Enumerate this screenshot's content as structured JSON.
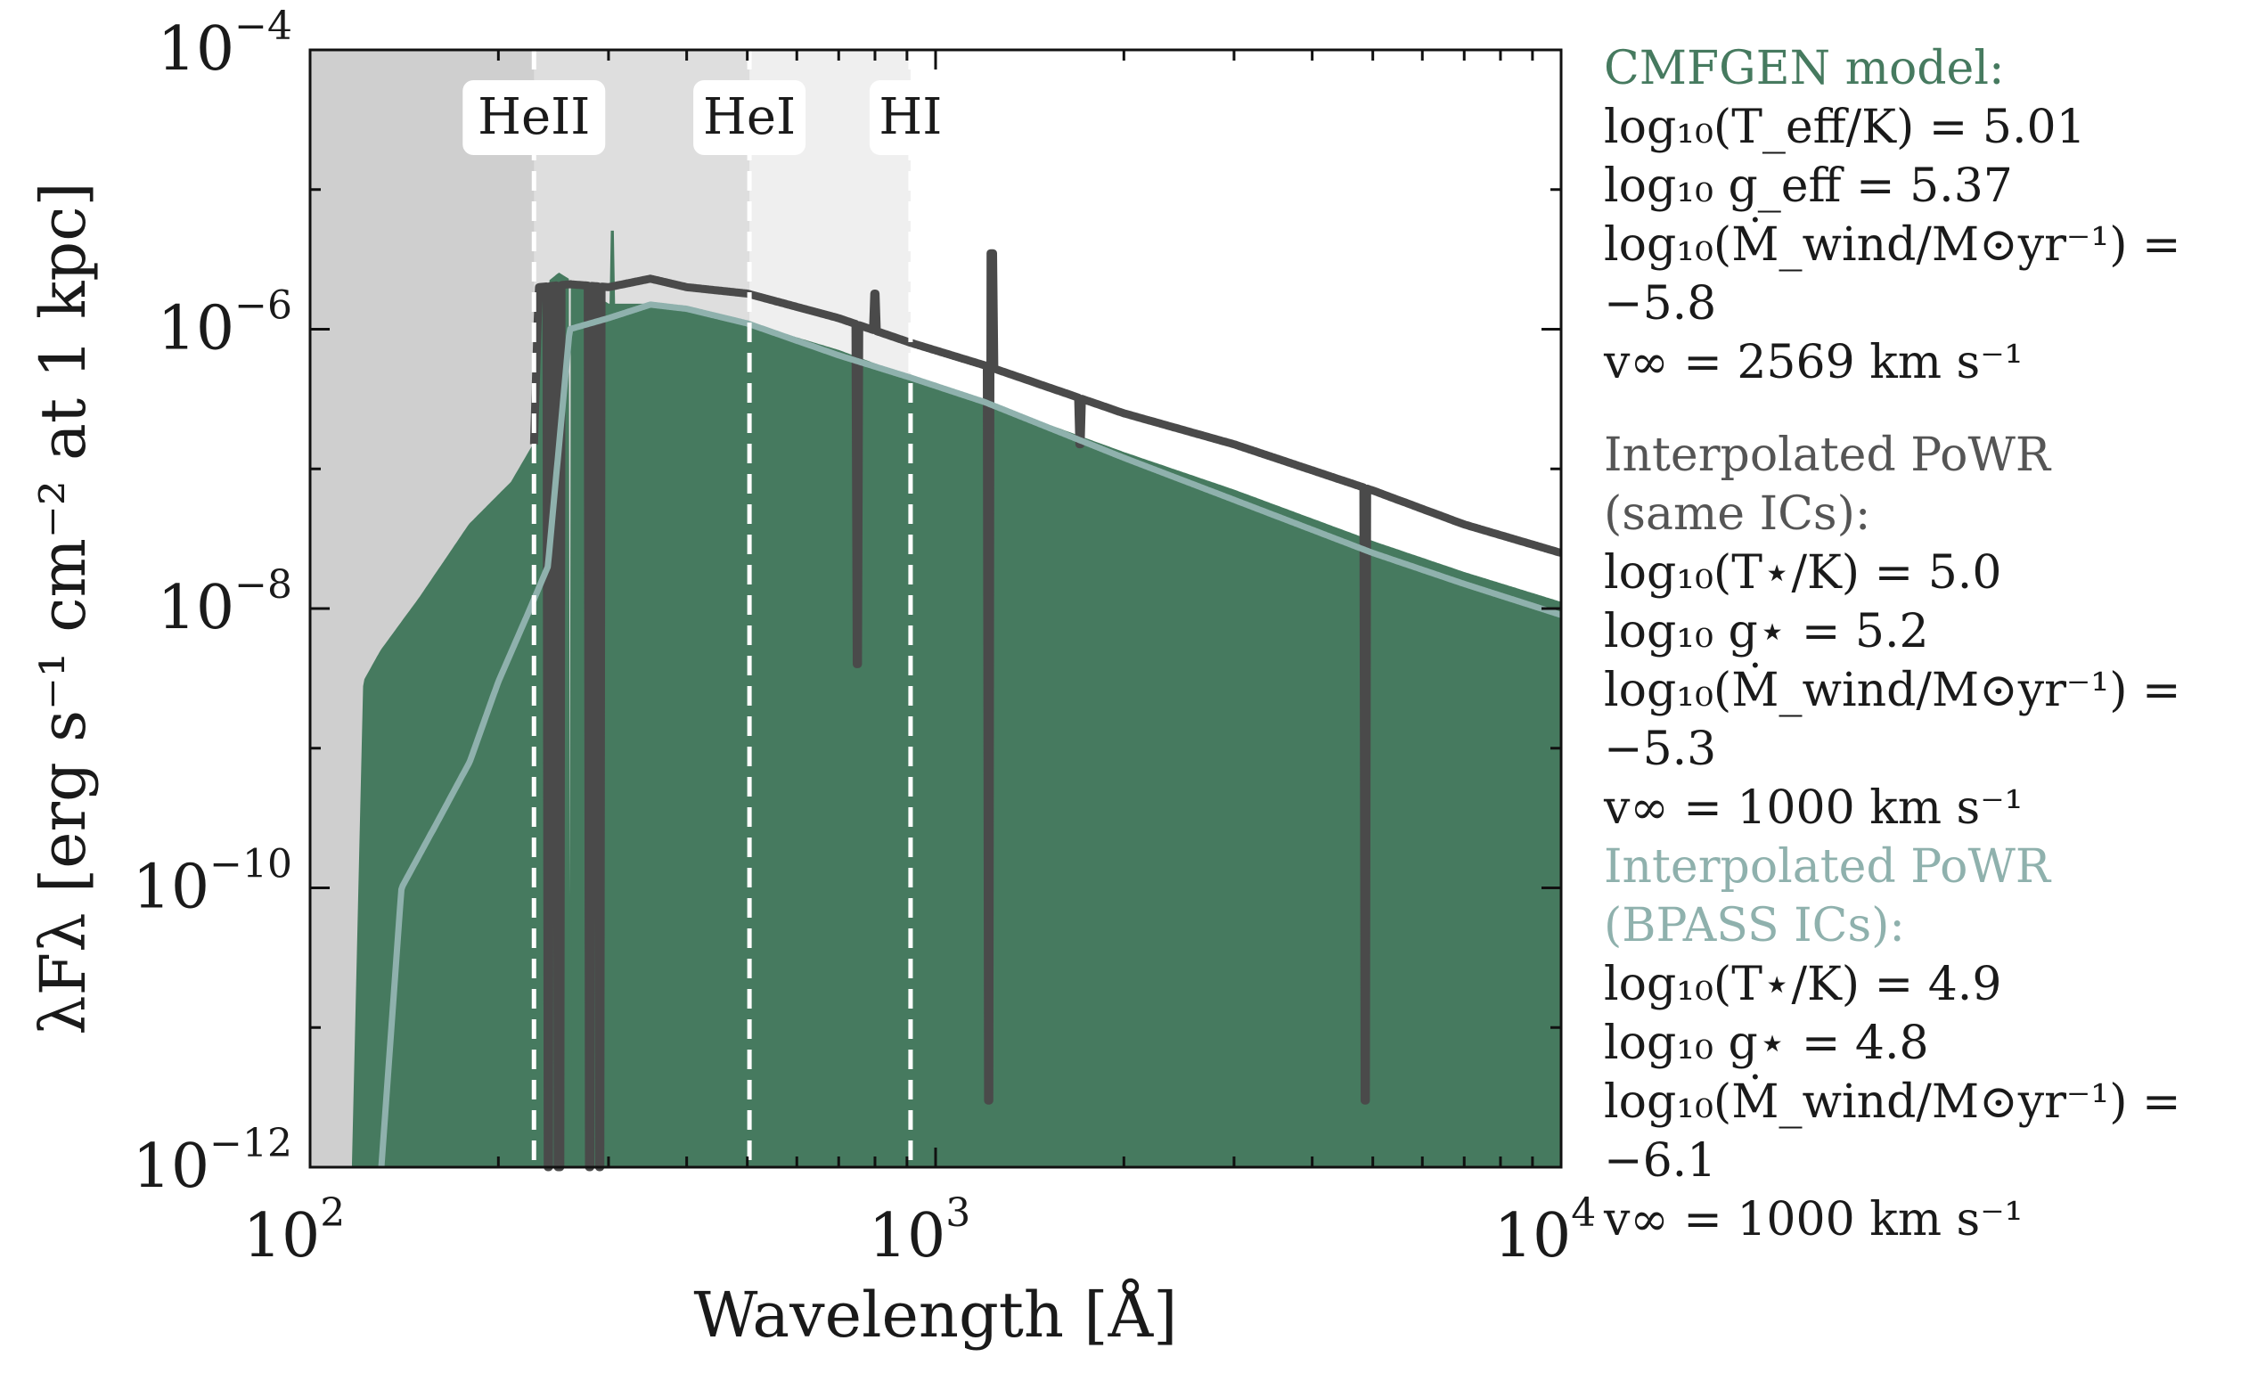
{
  "chart_data": {
    "type": "line",
    "title": "",
    "xlabel": "Wavelength [Å]",
    "ylabel": "λFλ [erg s⁻¹ cm⁻² at 1 kpc]",
    "xscale": "log",
    "yscale": "log",
    "xlim": [
      100,
      10000
    ],
    "ylim": [
      1e-12,
      0.0001
    ],
    "x_ticks": [
      {
        "base": "10",
        "exp": "2",
        "value": 100
      },
      {
        "base": "10",
        "exp": "3",
        "value": 1000
      },
      {
        "base": "10",
        "exp": "4",
        "value": 10000
      }
    ],
    "y_ticks": [
      {
        "base": "10",
        "exp": "−12",
        "value": 1e-12
      },
      {
        "base": "10",
        "exp": "−10",
        "value": 1e-10
      },
      {
        "base": "10",
        "exp": "−8",
        "value": 1e-08
      },
      {
        "base": "10",
        "exp": "−6",
        "value": 1e-06
      },
      {
        "base": "10",
        "exp": "−4",
        "value": 0.0001
      }
    ],
    "ionization_edges": [
      {
        "label": "HeII",
        "wavelength": 228,
        "shade": "#cfcfcf"
      },
      {
        "label": "HeI",
        "wavelength": 504,
        "shade": "#dedede"
      },
      {
        "label": "HI",
        "wavelength": 912,
        "shade": "#efefef"
      }
    ],
    "series": [
      {
        "name": "CMFGEN model",
        "color": "#467a5f",
        "style": "filled",
        "continuum": [
          [
            117,
            1e-12
          ],
          [
            122,
            3e-09
          ],
          [
            130,
            5e-09
          ],
          [
            150,
            1.2e-08
          ],
          [
            180,
            4e-08
          ],
          [
            210,
            8e-08
          ],
          [
            228,
            1.5e-07
          ],
          [
            235,
            2e-06
          ],
          [
            250,
            2.5e-06
          ],
          [
            300,
            1.5e-06
          ],
          [
            350,
            1.5e-06
          ],
          [
            400,
            1.4e-06
          ],
          [
            500,
            1.1e-06
          ],
          [
            700,
            7e-07
          ],
          [
            912,
            4.5e-07
          ],
          [
            1200,
            3e-07
          ],
          [
            2000,
            1.3e-07
          ],
          [
            3000,
            7e-08
          ],
          [
            5000,
            3e-08
          ],
          [
            7000,
            1.8e-08
          ],
          [
            10000,
            1.1e-08
          ]
        ],
        "lines": [
          [
            240,
            3e-12
          ],
          [
            260,
            5e-12
          ],
          [
            304,
            5e-06
          ],
          [
            1215,
            2e-07
          ],
          [
            4861,
            3e-08
          ]
        ]
      },
      {
        "name": "Interpolated PoWR (same ICs)",
        "color": "#4a4a4a",
        "style": "line",
        "continuum": [
          [
            228,
            1.5e-07
          ],
          [
            232,
            2e-06
          ],
          [
            260,
            2.1e-06
          ],
          [
            300,
            2e-06
          ],
          [
            350,
            2.3e-06
          ],
          [
            400,
            2e-06
          ],
          [
            500,
            1.8e-06
          ],
          [
            700,
            1.2e-06
          ],
          [
            912,
            8e-07
          ],
          [
            1200,
            5.5e-07
          ],
          [
            2000,
            2.5e-07
          ],
          [
            3000,
            1.5e-07
          ],
          [
            5000,
            7e-08
          ],
          [
            7000,
            4e-08
          ],
          [
            10000,
            2.5e-08
          ]
        ],
        "lines": [
          [
            240,
            1e-12
          ],
          [
            250,
            1e-12
          ],
          [
            280,
            1e-12
          ],
          [
            290,
            1e-12
          ],
          [
            750,
            4e-09
          ],
          [
            800,
            1.8e-06
          ],
          [
            1215,
            3e-12
          ],
          [
            1230,
            3.5e-06
          ],
          [
            1700,
            1.5e-07
          ],
          [
            4861,
            3e-12
          ],
          [
            4870,
            1.5e-07
          ]
        ]
      },
      {
        "name": "Interpolated PoWR (BPASS ICs)",
        "color": "#8fb1ad",
        "style": "line",
        "continuum": [
          [
            130,
            1e-12
          ],
          [
            140,
            1e-10
          ],
          [
            160,
            3e-10
          ],
          [
            180,
            8e-10
          ],
          [
            200,
            3e-09
          ],
          [
            220,
            8e-09
          ],
          [
            240,
            2e-08
          ],
          [
            260,
            1e-06
          ],
          [
            300,
            1.2e-06
          ],
          [
            350,
            1.5e-06
          ],
          [
            400,
            1.4e-06
          ],
          [
            500,
            1.1e-06
          ],
          [
            700,
            6.5e-07
          ],
          [
            912,
            4.5e-07
          ],
          [
            1200,
            3e-07
          ],
          [
            2000,
            1.2e-07
          ],
          [
            3000,
            6e-08
          ],
          [
            5000,
            2.5e-08
          ],
          [
            7000,
            1.5e-08
          ],
          [
            10000,
            9e-09
          ]
        ],
        "lines": []
      }
    ]
  },
  "legend": {
    "blocks": [
      {
        "title": "CMFGEN model:",
        "color": "#467a5f",
        "lines": [
          "log₁₀(T_eff/K) = 5.01",
          "log₁₀ g_eff = 5.37",
          "log₁₀(Ṁ_wind/M⊙yr⁻¹) = −5.8",
          "v∞ = 2569 km s⁻¹"
        ]
      },
      {
        "title_1": "Interpolated PoWR",
        "title_2": "(same ICs):",
        "color": "#555555",
        "lines": [
          "log₁₀(T⋆/K) = 5.0",
          "log₁₀ g⋆ = 5.2",
          "log₁₀(Ṁ_wind/M⊙yr⁻¹) = −5.3",
          "v∞ = 1000 km s⁻¹"
        ]
      },
      {
        "title_1": "Interpolated PoWR",
        "title_2": "(BPASS ICs):",
        "color": "#8fb1ad",
        "lines": [
          "log₁₀(T⋆/K) = 4.9",
          "log₁₀ g⋆ = 4.8",
          "log₁₀(Ṁ_wind/M⊙yr⁻¹) = −6.1",
          "v∞ = 1000 km s⁻¹"
        ]
      }
    ]
  }
}
